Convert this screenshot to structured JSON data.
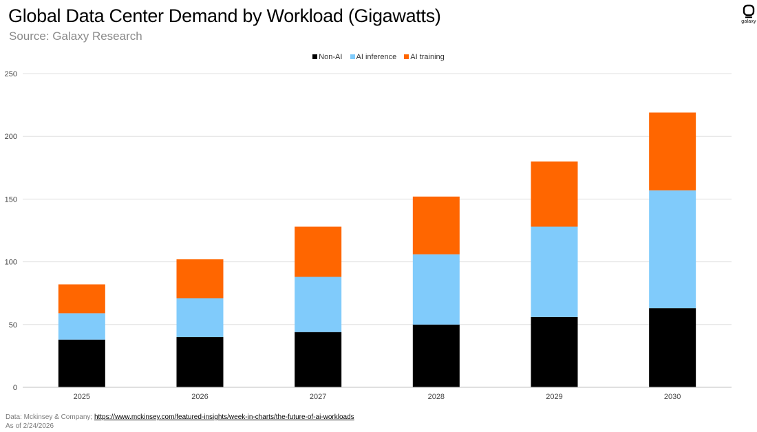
{
  "header": {
    "title": "Global Data Center Demand by Workload (Gigawatts)",
    "subtitle": "Source: Galaxy Research"
  },
  "logo": {
    "text": "galaxy",
    "icon": "galaxy-logo-icon"
  },
  "footer": {
    "data_prefix": "Data: Mckinsey & Company; ",
    "link_text": "https://www.mckinsey.com/featured-insights/week-in-charts/the-future-of-ai-workloads",
    "as_of": "As of 2/24/2026"
  },
  "chart_data": {
    "type": "bar",
    "stacked": true,
    "title": "Global Data Center Demand by Workload (Gigawatts)",
    "categories": [
      "2025",
      "2026",
      "2027",
      "2028",
      "2029",
      "2030"
    ],
    "series": [
      {
        "name": "Non-AI",
        "color": "#000000",
        "values": [
          38,
          40,
          44,
          50,
          56,
          63
        ]
      },
      {
        "name": "AI inference",
        "color": "#80CBFB",
        "values": [
          21,
          31,
          44,
          56,
          72,
          94
        ]
      },
      {
        "name": "AI training",
        "color": "#FF6600",
        "values": [
          23,
          31,
          40,
          46,
          52,
          62
        ]
      }
    ],
    "ylim": [
      0,
      250
    ],
    "yticks": [
      0,
      50,
      100,
      150,
      200,
      250
    ],
    "xlabel": "",
    "ylabel": "",
    "grid": true,
    "legend_position": "top-center",
    "gridline_color": "#E0E0E0"
  }
}
